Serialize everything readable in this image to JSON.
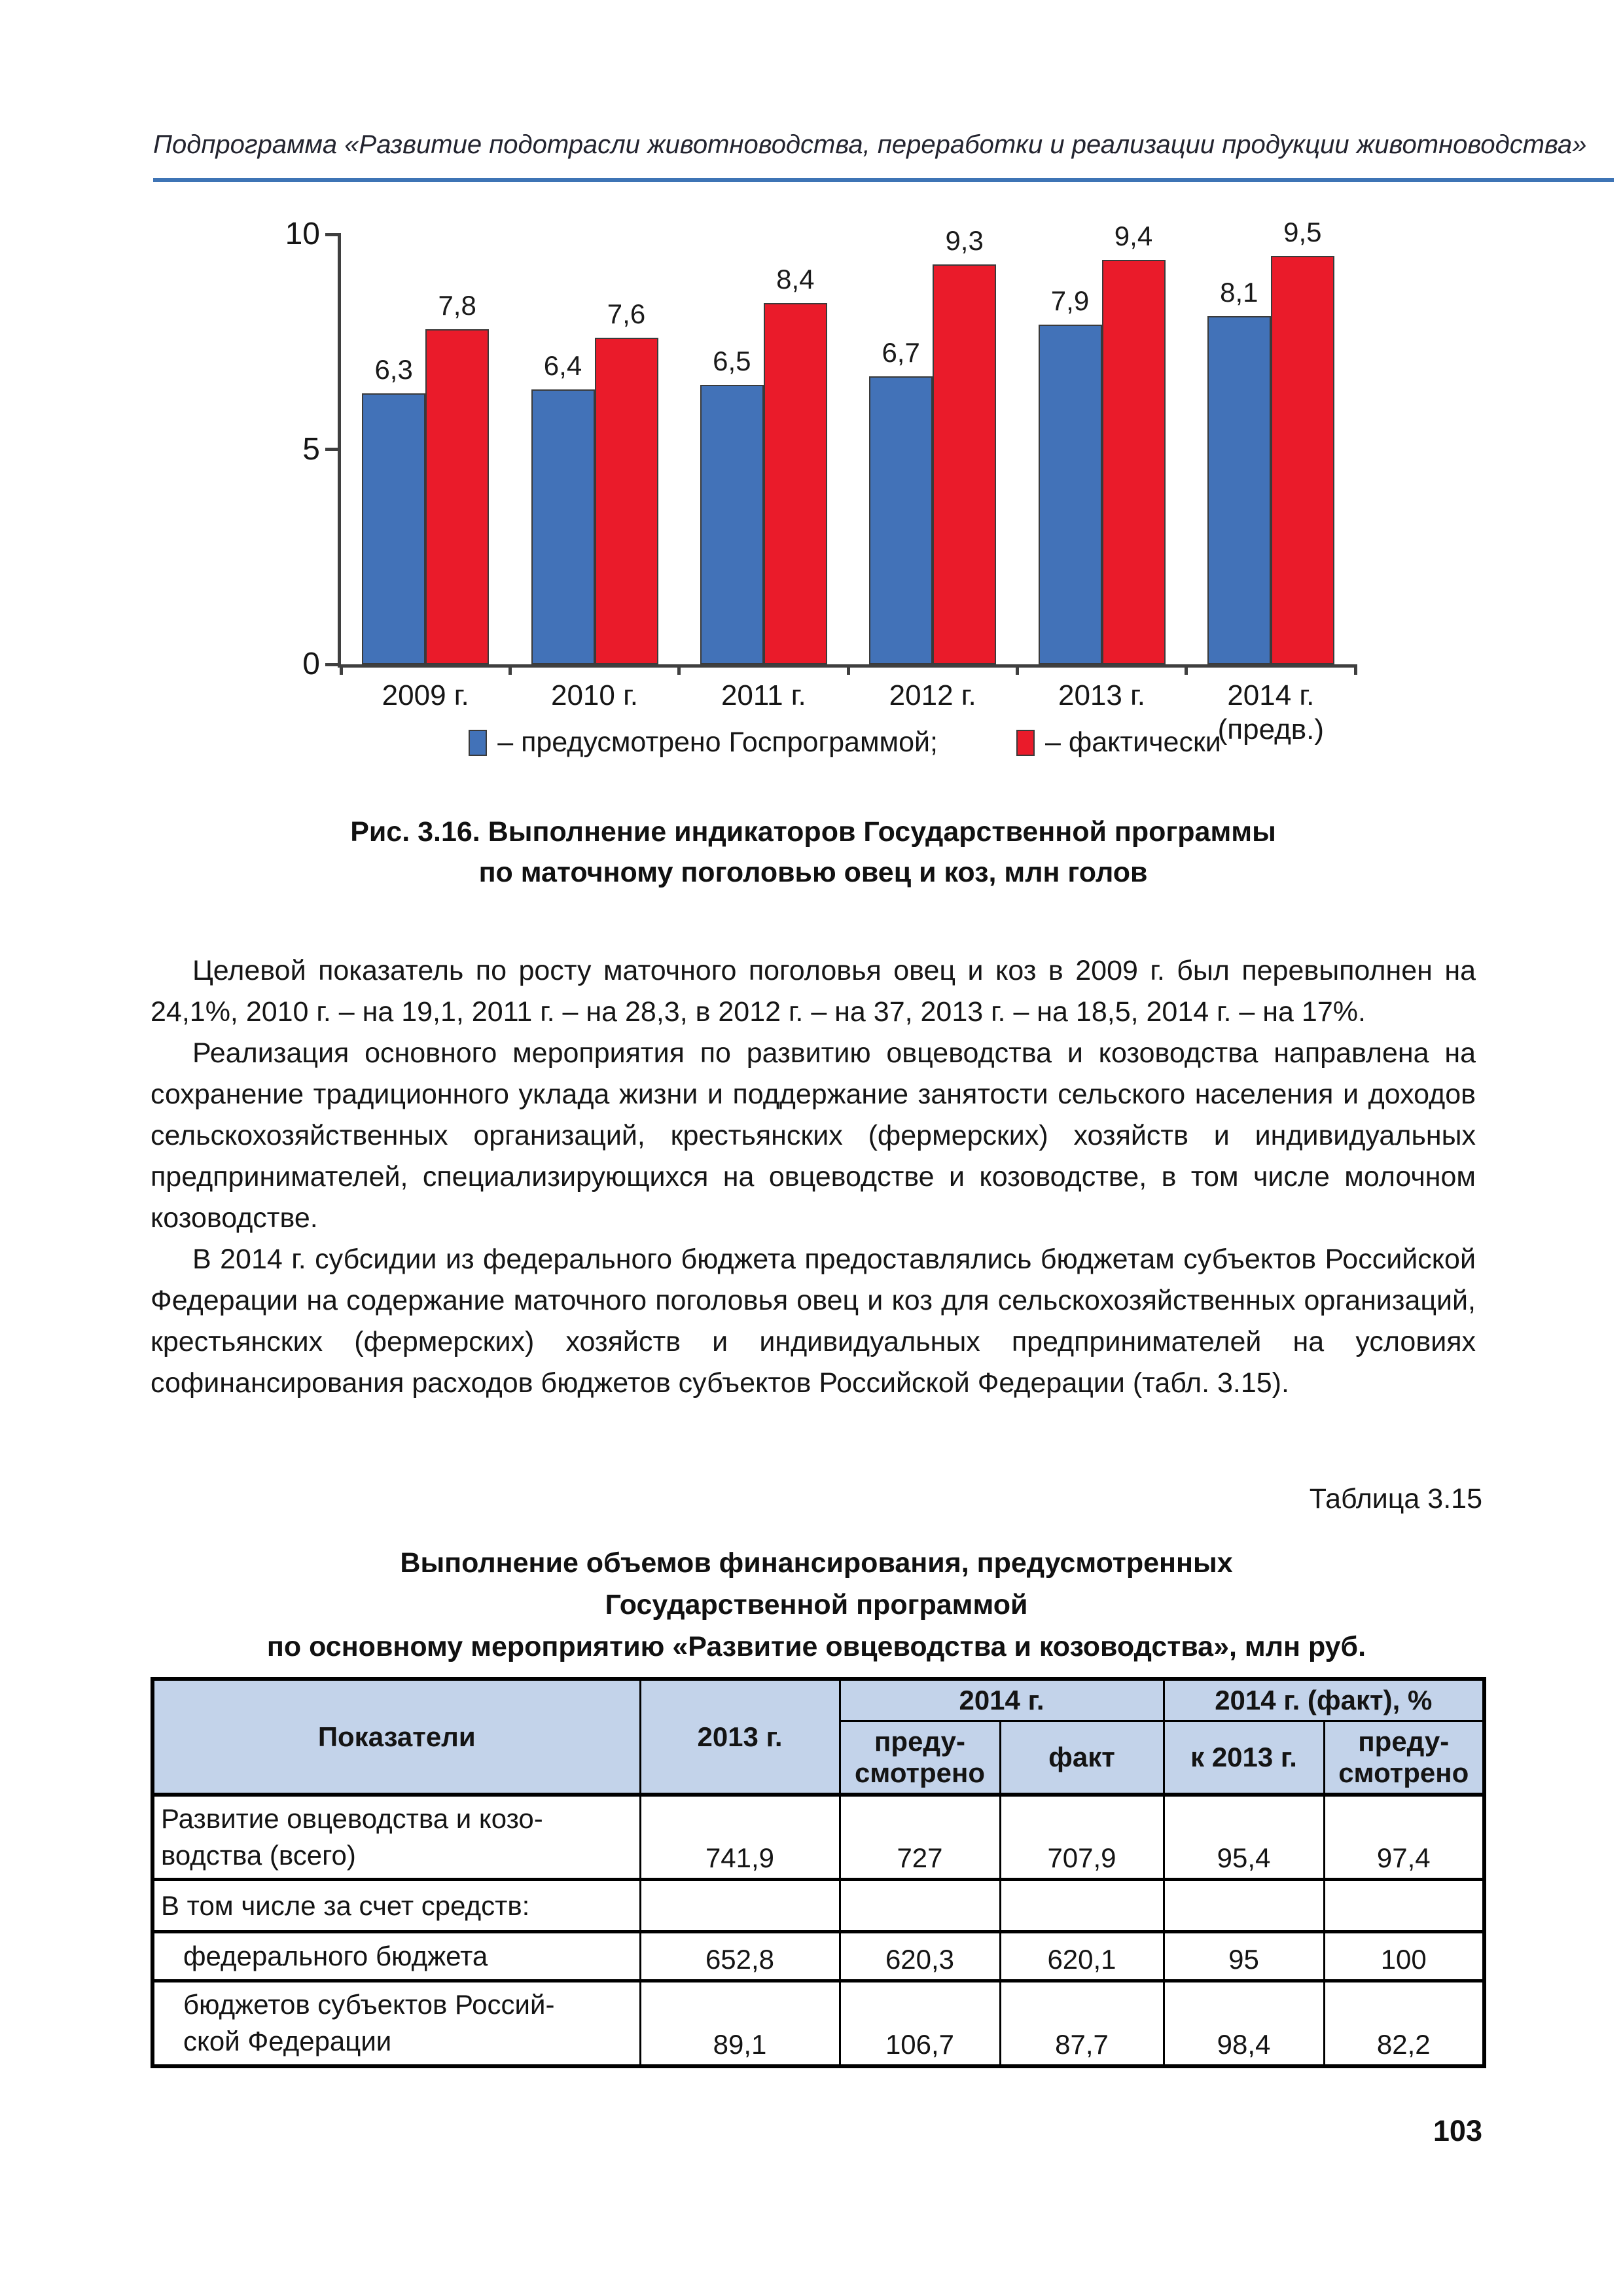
{
  "page": {
    "running_header": "Подпрограмма «Развитие подотрасли животноводства, переработки и реализации продукции животноводства»",
    "accent_color": "#3e74b5",
    "page_number": "103"
  },
  "chart_data": {
    "type": "bar",
    "title": "",
    "ylabel": "млн голов",
    "ylim": [
      0,
      10
    ],
    "yticks": [
      "0",
      "5",
      "10"
    ],
    "grid": false,
    "legend_position": "bottom",
    "categories": [
      "2009 г.",
      "2010 г.",
      "2011 г.",
      "2012 г.",
      "2013 г.",
      "2014 г.\n(предв.)"
    ],
    "series": [
      {
        "name": "предусмотрено Госпрограммой",
        "color": "#4272b8",
        "values": [
          6.3,
          6.4,
          6.5,
          6.7,
          7.9,
          8.1
        ],
        "labels": [
          "6,3",
          "6,4",
          "6,5",
          "6,7",
          "7,9",
          "8,1"
        ]
      },
      {
        "name": "фактически",
        "color": "#ea1b2a",
        "values": [
          7.8,
          7.6,
          8.4,
          9.3,
          9.4,
          9.5
        ],
        "labels": [
          "7,8",
          "7,6",
          "8,4",
          "9,3",
          "9,4",
          "9,5"
        ]
      }
    ],
    "legend": [
      "– предусмотрено Госпрограммой;",
      "– фактически"
    ]
  },
  "figure_caption": [
    "Рис. 3.16. Выполнение индикаторов Государственной программы",
    "по маточному поголовью овец и коз, млн голов"
  ],
  "paragraphs": [
    "Целевой показатель по росту маточного поголовья овец и коз в 2009 г. был перевыполнен на 24,1%, 2010 г. – на 19,1, 2011 г. – на 28,3, в 2012 г. – на 37, 2013 г. – на 18,5, 2014 г. – на 17%.",
    "Реализация основного мероприятия по развитию овцеводства и козоводства направлена на сохранение традиционного уклада жизни и поддержание занятости сельского населения и доходов сельскохозяйственных организаций, крестьянских (фермерских) хозяйств и индивидуальных предпринимателей, специализирующихся на овцеводстве и козоводстве, в том числе молочном козоводстве.",
    "В 2014 г. субсидии из федерального бюджета предоставлялись бюджетам субъектов Российской Федерации на содержание маточного поголовья овец и коз для сельскохозяйственных организаций, крестьянских (фермерских) хозяйств и индивидуальных предпринимателей на условиях софинансирования расходов бюджетов субъектов Российской Федерации (табл. 3.15)."
  ],
  "table_label": "Таблица 3.15",
  "table_title": [
    "Выполнение объемов финансирования, предусмотренных",
    "Государственной программой",
    "по основному мероприятию «Развитие овцеводства и козоводства», млн руб."
  ],
  "table": {
    "header": {
      "col_indicators": "Показатели",
      "col_2013": "2013 г.",
      "group_2014": "2014 г.",
      "group_2014_fact": "2014 г. (факт), %",
      "sub": [
        "преду-\nсмотрено",
        "факт",
        "к 2013 г.",
        "преду-\nсмотрено"
      ]
    },
    "rows": [
      {
        "label": "Развитие овцеводства и козо-\nводства (всего)",
        "indent": false,
        "values": [
          "741,9",
          "727",
          "707,9",
          "95,4",
          "97,4"
        ]
      },
      {
        "label": "В том числе за счет средств:",
        "indent": false,
        "values": [
          "",
          "",
          "",
          "",
          ""
        ]
      },
      {
        "label": "федерального бюджета",
        "indent": true,
        "values": [
          "652,8",
          "620,3",
          "620,1",
          "95",
          "100"
        ]
      },
      {
        "label": "бюджетов субъектов Россий-\nской Федерации",
        "indent": true,
        "values": [
          "89,1",
          "106,7",
          "87,7",
          "98,4",
          "82,2"
        ]
      }
    ]
  }
}
